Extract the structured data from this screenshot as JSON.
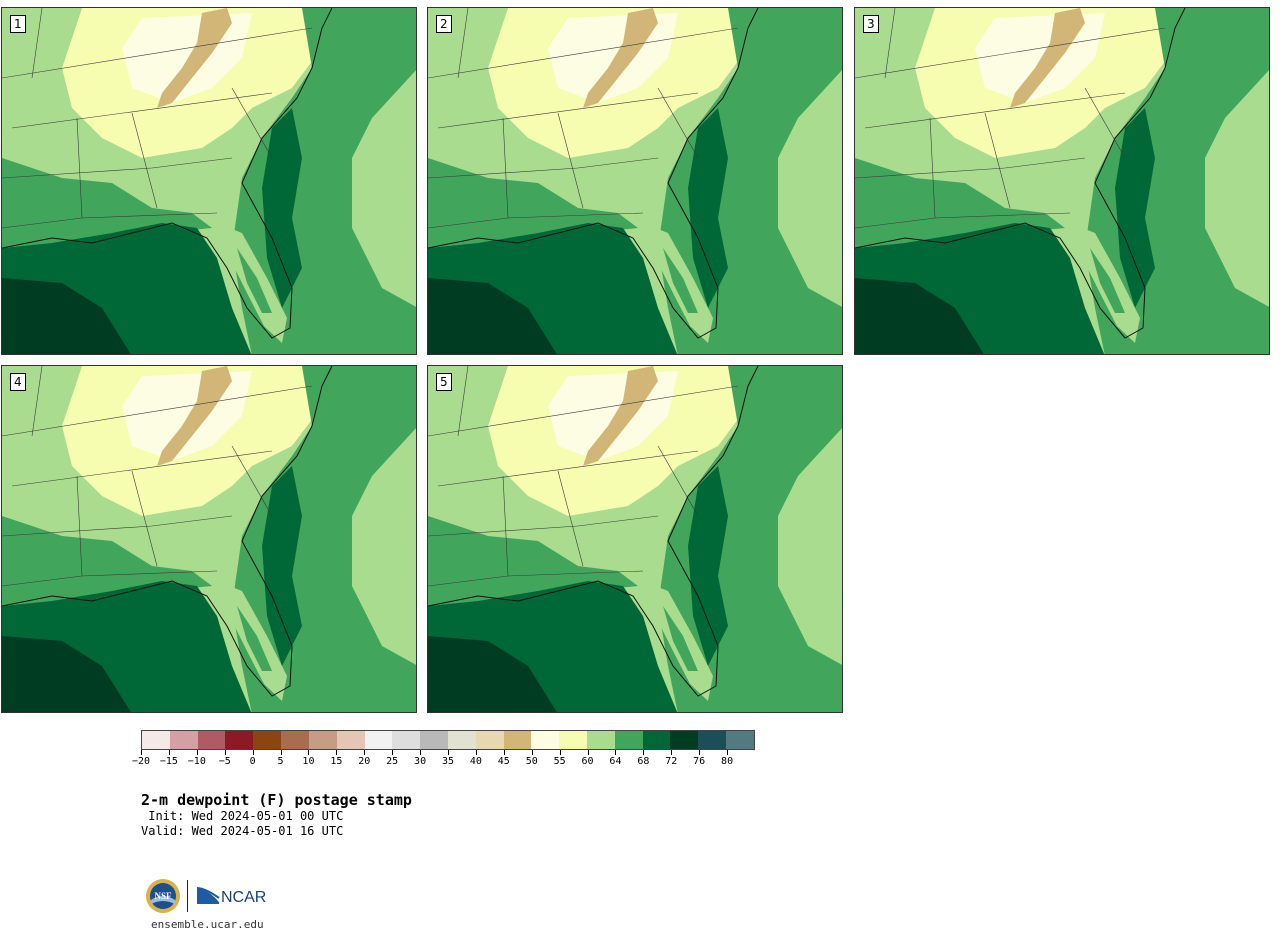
{
  "panels": [
    {
      "label": "1"
    },
    {
      "label": "2"
    },
    {
      "label": "3"
    },
    {
      "label": "4"
    },
    {
      "label": "5"
    }
  ],
  "colorbar": {
    "colors": [
      "#f4e8e8",
      "#d49fa5",
      "#b05a63",
      "#8c1a24",
      "#8a4510",
      "#a86d4f",
      "#c79c84",
      "#e4c6b5",
      "#f2f2f2",
      "#dedede",
      "#b9b9b9",
      "#e2e2d2",
      "#e8d8b2",
      "#d2b678",
      "#fdfde3",
      "#f6fcb0",
      "#a9dc8f",
      "#42a55c",
      "#006837",
      "#003c22",
      "#1c4e57",
      "#537a80"
    ],
    "tick_labels": [
      "−20",
      "−15",
      "−10",
      "−5",
      "0",
      "5",
      "10",
      "15",
      "20",
      "25",
      "30",
      "35",
      "40",
      "45",
      "50",
      "55",
      "60",
      "64",
      "68",
      "72",
      "76",
      "80"
    ]
  },
  "title": "2-m dewpoint (F) postage stamp",
  "init": " Init: Wed 2024-05-01 00 UTC",
  "valid": "Valid: Wed 2024-05-01 16 UTC",
  "logos": {
    "nsf": "NSF",
    "ncar": "NCAR"
  },
  "site": "ensemble.ucar.edu"
}
